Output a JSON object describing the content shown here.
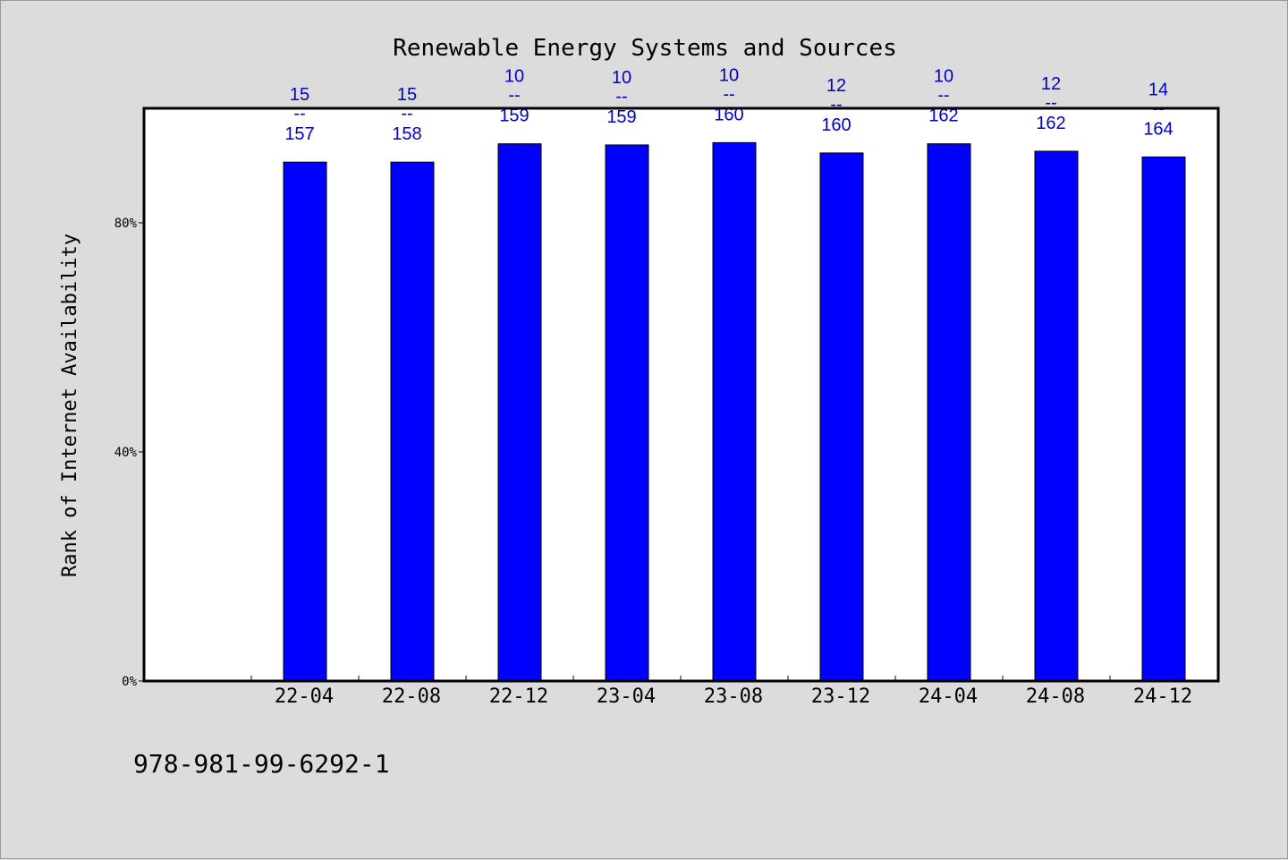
{
  "chart_data": {
    "type": "bar",
    "title": "Renewable Energy Systems and Sources",
    "xlabel": "",
    "ylabel": "Rank of Internet Availability",
    "categories": [
      "22-04",
      "22-08",
      "22-12",
      "23-04",
      "23-08",
      "23-12",
      "24-04",
      "24-08",
      "24-12"
    ],
    "values": [
      90.6,
      90.6,
      93.8,
      93.6,
      94.0,
      92.2,
      93.8,
      92.5,
      91.5
    ],
    "numerators": [
      "15",
      "15",
      "10",
      "10",
      "10",
      "12",
      "10",
      "12",
      "14"
    ],
    "denominators": [
      "157",
      "158",
      "159",
      "159",
      "160",
      "160",
      "162",
      "162",
      "164"
    ],
    "fraction_separator": "--",
    "ylim": [
      0,
      100
    ],
    "yticks": [
      0,
      40,
      80
    ],
    "ytick_labels": [
      "0%",
      "40%",
      "80%"
    ],
    "grid": false,
    "bar_color": "#0000ff",
    "label_color": "#0000cc"
  },
  "footer": {
    "isbn": "978-981-99-6292-1"
  }
}
